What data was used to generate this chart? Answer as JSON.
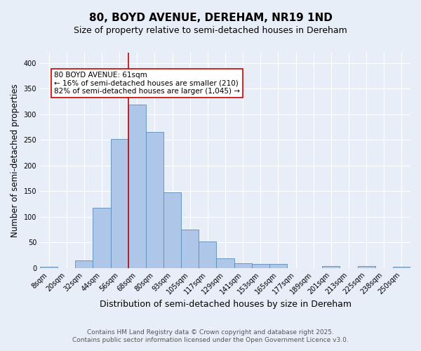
{
  "title": "80, BOYD AVENUE, DEREHAM, NR19 1ND",
  "subtitle": "Size of property relative to semi-detached houses in Dereham",
  "xlabel": "Distribution of semi-detached houses by size in Dereham",
  "ylabel": "Number of semi-detached properties",
  "categories": [
    "8sqm",
    "20sqm",
    "32sqm",
    "44sqm",
    "56sqm",
    "68sqm",
    "80sqm",
    "93sqm",
    "105sqm",
    "117sqm",
    "129sqm",
    "141sqm",
    "153sqm",
    "165sqm",
    "177sqm",
    "189sqm",
    "201sqm",
    "213sqm",
    "225sqm",
    "238sqm",
    "250sqm"
  ],
  "values": [
    2,
    0,
    15,
    117,
    252,
    318,
    265,
    147,
    75,
    51,
    18,
    9,
    7,
    7,
    0,
    0,
    4,
    0,
    3,
    0,
    2
  ],
  "bar_color": "#aec6e8",
  "bar_edge_color": "#5b8db8",
  "bg_color": "#e8eef8",
  "grid_color": "#ffffff",
  "vline_x_idx": 4.5,
  "vline_color": "#cc0000",
  "annotation_text": "80 BOYD AVENUE: 61sqm\n← 16% of semi-detached houses are smaller (210)\n82% of semi-detached houses are larger (1,045) →",
  "annotation_box_color": "#ffffff",
  "annotation_box_edge": "#cc0000",
  "footnote1": "Contains HM Land Registry data © Crown copyright and database right 2025.",
  "footnote2": "Contains public sector information licensed under the Open Government Licence v3.0.",
  "ylim": [
    0,
    420
  ],
  "yticks": [
    0,
    50,
    100,
    150,
    200,
    250,
    300,
    350,
    400
  ],
  "title_fontsize": 11,
  "subtitle_fontsize": 9,
  "xlabel_fontsize": 9,
  "ylabel_fontsize": 8.5,
  "tick_fontsize": 7,
  "annotation_fontsize": 7.5,
  "footnote_fontsize": 6.5
}
